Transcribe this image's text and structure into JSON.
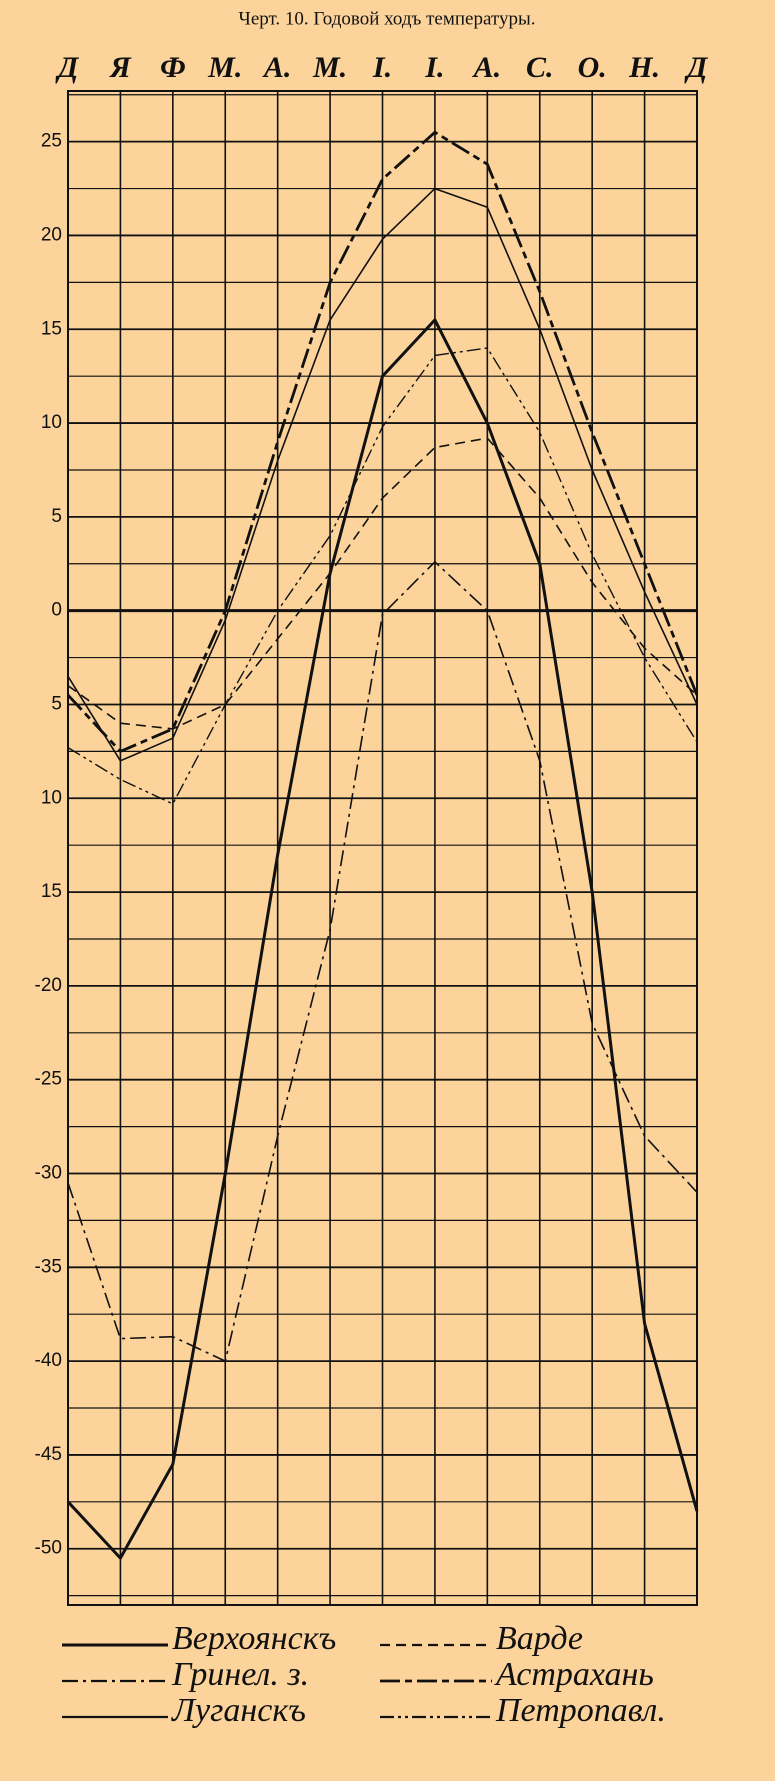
{
  "chart_data": {
    "type": "line",
    "title": "Черт. 10. Годовой ходъ температуры.",
    "categories": [
      "Д",
      "Я",
      "Ф",
      "М.",
      "А.",
      "М.",
      "І.",
      "І.",
      "А.",
      "С.",
      "О.",
      "Н.",
      "Д"
    ],
    "ylim": [
      -53,
      27.7
    ],
    "yticks": [
      25,
      20,
      15,
      10,
      5,
      0,
      {
        "value": -5,
        "label": "5"
      },
      {
        "value": -10,
        "label": "10"
      },
      {
        "value": -15,
        "label": "15"
      },
      -20,
      -25,
      -30,
      -35,
      -40,
      -45,
      -50
    ],
    "grid": true,
    "series": [
      {
        "name": "Верхоянскъ",
        "color": "#111",
        "dash": "solid",
        "width": 3,
        "values": [
          -47.5,
          -50.5,
          -45.5,
          -30,
          -13,
          2,
          12.5,
          15.5,
          10,
          2.5,
          -15,
          -38,
          -48
        ]
      },
      {
        "name": "Варде",
        "color": "#111",
        "dash": "dashed",
        "width": 1.6,
        "values": [
          -4,
          -6,
          -6.3,
          -5,
          -1.5,
          2,
          6,
          8.7,
          9.2,
          6,
          1.5,
          -2,
          -4.5
        ]
      },
      {
        "name": "Гринел. з.",
        "color": "#111",
        "dash": "dashdot",
        "width": 1.6,
        "values": [
          -30.5,
          -38.8,
          -38.7,
          -40,
          -28,
          -17,
          -0.2,
          2.6,
          0,
          -8,
          -22,
          -28,
          -31
        ]
      },
      {
        "name": "Астрахань",
        "color": "#111",
        "dash": "longdash",
        "width": 2.8,
        "values": [
          -4.5,
          -7.5,
          -6.3,
          0,
          9,
          17.5,
          23,
          25.5,
          23.8,
          17,
          9.5,
          2.5,
          -4.5
        ]
      },
      {
        "name": "Луганскъ",
        "color": "#111",
        "dash": "solid",
        "width": 1.6,
        "values": [
          -3.5,
          -8,
          -6.8,
          -0.5,
          8,
          15.5,
          19.8,
          22.5,
          21.5,
          15,
          7.5,
          1,
          -5
        ]
      },
      {
        "name": "Петропавл.",
        "color": "#111",
        "dash": "dashdotdot",
        "width": 1.4,
        "values": [
          -7.3,
          -9,
          -10.3,
          -5,
          0,
          4,
          9.8,
          13.6,
          14,
          9.5,
          3,
          -2.5,
          -7
        ]
      }
    ]
  }
}
